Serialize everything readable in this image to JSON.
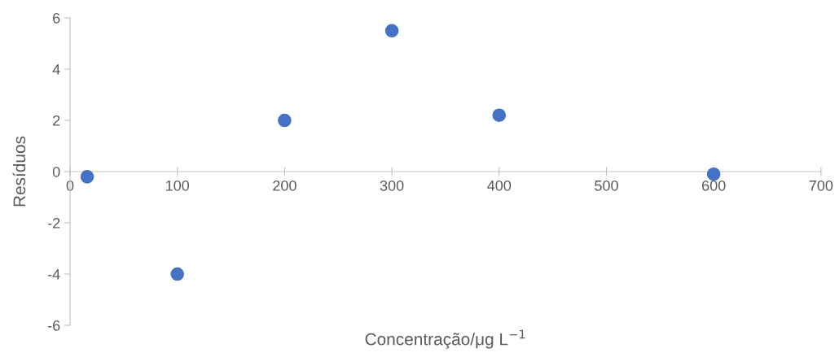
{
  "chart_data": {
    "type": "scatter",
    "xlabel": "Concentração/μg L$^{−1}$",
    "ylabel": "Resíduos",
    "x": [
      16,
      100,
      200,
      300,
      400,
      600
    ],
    "values": [
      -0.2,
      -4,
      2,
      5.5,
      2.2,
      -0.1
    ],
    "color": "#4472c4",
    "marker": "circle",
    "grid": false,
    "legend": false,
    "xlim": [
      0,
      700
    ],
    "xticks": [
      0,
      100,
      200,
      300,
      400,
      500,
      600,
      700
    ],
    "ylim": [
      -6,
      6
    ],
    "yticks": [
      -6,
      -4,
      -2,
      0,
      2,
      4,
      6
    ]
  }
}
